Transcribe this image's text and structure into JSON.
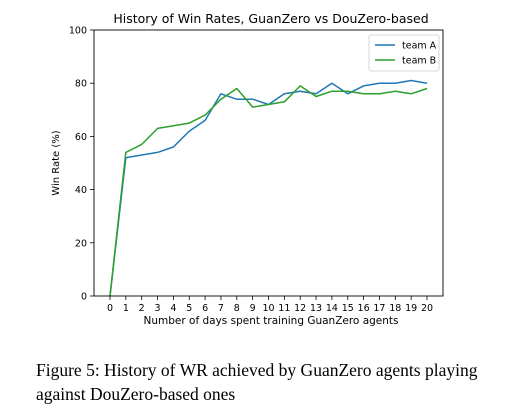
{
  "chart_data": {
    "type": "line",
    "title": "History of Win Rates, GuanZero vs DouZero-based",
    "xlabel": "Number of days spent training GuanZero agents",
    "ylabel": "Win Rate (%)",
    "x": [
      0,
      1,
      2,
      3,
      4,
      5,
      6,
      7,
      8,
      9,
      10,
      11,
      12,
      13,
      14,
      15,
      16,
      17,
      18,
      19,
      20
    ],
    "x_ticks": [
      "0",
      "1",
      "2",
      "3",
      "4",
      "5",
      "6",
      "7",
      "8",
      "9",
      "10",
      "11",
      "12",
      "13",
      "14",
      "15",
      "16",
      "17",
      "18",
      "19",
      "20"
    ],
    "y_ticks": [
      "0",
      "20",
      "40",
      "60",
      "80",
      "100"
    ],
    "xlim": [
      0,
      20
    ],
    "ylim": [
      0,
      100
    ],
    "grid": false,
    "legend_position": "top-right",
    "series": [
      {
        "name": "team A",
        "color": "#1f77b4",
        "values": [
          0,
          52,
          53,
          54,
          56,
          62,
          66,
          76,
          74,
          74,
          72,
          76,
          77,
          76,
          80,
          76,
          79,
          80,
          80,
          81,
          80
        ]
      },
      {
        "name": "team B",
        "color": "#2ca02c",
        "values": [
          0,
          54,
          57,
          63,
          64,
          65,
          68,
          74,
          78,
          71,
          72,
          73,
          79,
          75,
          77,
          77,
          76,
          76,
          77,
          76,
          78
        ]
      }
    ]
  },
  "caption": "Figure 5: History of WR achieved by GuanZero agents playing against DouZero-based ones"
}
